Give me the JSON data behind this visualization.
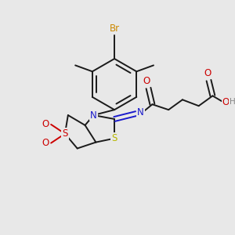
{
  "bg_color": "#e8e8e8",
  "bond_color": "#1a1a1a",
  "bond_width": 1.4,
  "dbo": 0.012,
  "figsize": [
    3.0,
    3.0
  ],
  "dpi": 100,
  "colors": {
    "bond": "#1a1a1a",
    "N": "#1a1acc",
    "S_yellow": "#b8b800",
    "S_red": "#cc0000",
    "O": "#cc0000",
    "Br": "#cc8800",
    "H": "#888888",
    "bg": "#e8e8e8"
  }
}
